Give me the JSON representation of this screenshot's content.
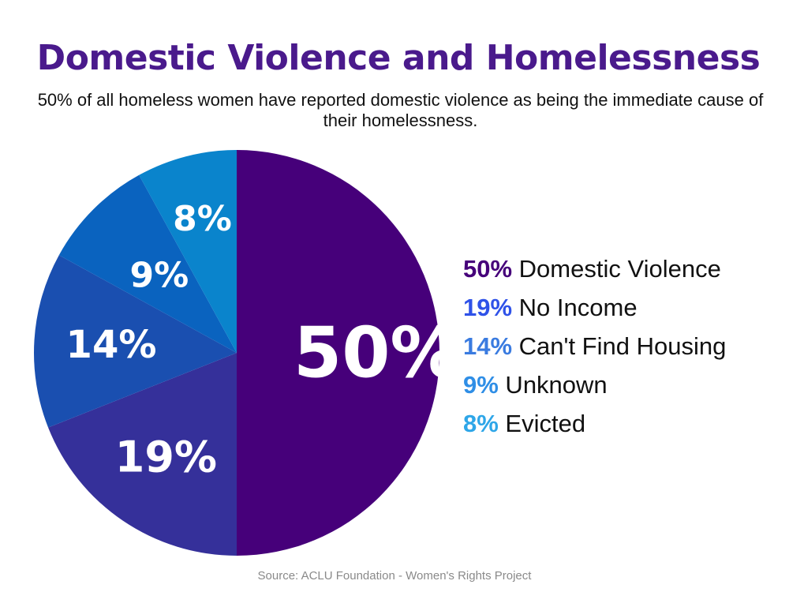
{
  "title": "Domestic Violence and Homelessness",
  "subtitle": "50% of all homeless women have reported domestic violence as being the immediate cause of their homelessness.",
  "source": "Source: ACLU Foundation - Women's Rights Project",
  "chart_data": {
    "type": "pie",
    "title": "Domestic Violence and Homelessness",
    "start_angle": "12 o'clock, clockwise",
    "legend_position": "right",
    "slices": [
      {
        "label": "Domestic Violence",
        "value": 50,
        "display": "50%",
        "color": "#46007a",
        "legend_color": "#46007a"
      },
      {
        "label": "No Income",
        "value": 19,
        "display": "19%",
        "color": "#35309a",
        "legend_color": "#2f52e8"
      },
      {
        "label": "Can't Find Housing",
        "value": 14,
        "display": "14%",
        "color": "#1a4fb0",
        "legend_color": "#3a7be0"
      },
      {
        "label": "Unknown",
        "value": 9,
        "display": "9%",
        "color": "#0a63bf",
        "legend_color": "#2f8ee6"
      },
      {
        "label": "Evicted",
        "value": 8,
        "display": "8%",
        "color": "#0a84cc",
        "legend_color": "#2ea6e8"
      }
    ]
  }
}
